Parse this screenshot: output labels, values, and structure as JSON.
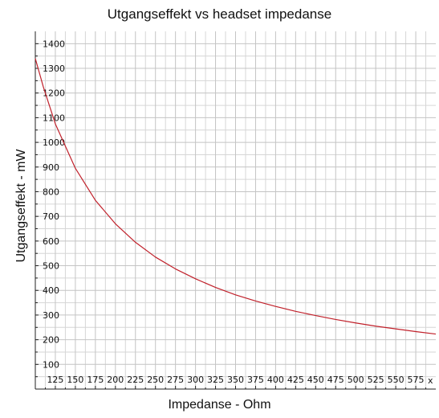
{
  "chart_data": {
    "type": "line",
    "title": "Utgangseffekt vs headset impedanse",
    "xlabel": "Impedanse - Ohm",
    "ylabel": "Utgangseffekt - mW",
    "xlim": [
      100,
      600
    ],
    "ylim": [
      0,
      1450
    ],
    "x_ticks": [
      125,
      150,
      175,
      200,
      225,
      250,
      275,
      300,
      325,
      350,
      375,
      400,
      425,
      450,
      475,
      500,
      525,
      550,
      575
    ],
    "y_ticks": [
      100,
      200,
      300,
      400,
      500,
      600,
      700,
      800,
      900,
      1000,
      1100,
      1200,
      1300,
      1400
    ],
    "x_axis_end_marker": "x",
    "grid": true,
    "line_color": "#c0202a",
    "series": [
      {
        "x": [
          100,
          110,
          125,
          150,
          175,
          200,
          225,
          250,
          275,
          300,
          325,
          350,
          375,
          400,
          425,
          450,
          475,
          500,
          525,
          550,
          575,
          600
        ],
        "y": [
          1340,
          1225,
          1075,
          895,
          765,
          670,
          595,
          535,
          487,
          447,
          412,
          382,
          357,
          335,
          315,
          298,
          282,
          268,
          255,
          244,
          233,
          223
        ]
      }
    ]
  }
}
